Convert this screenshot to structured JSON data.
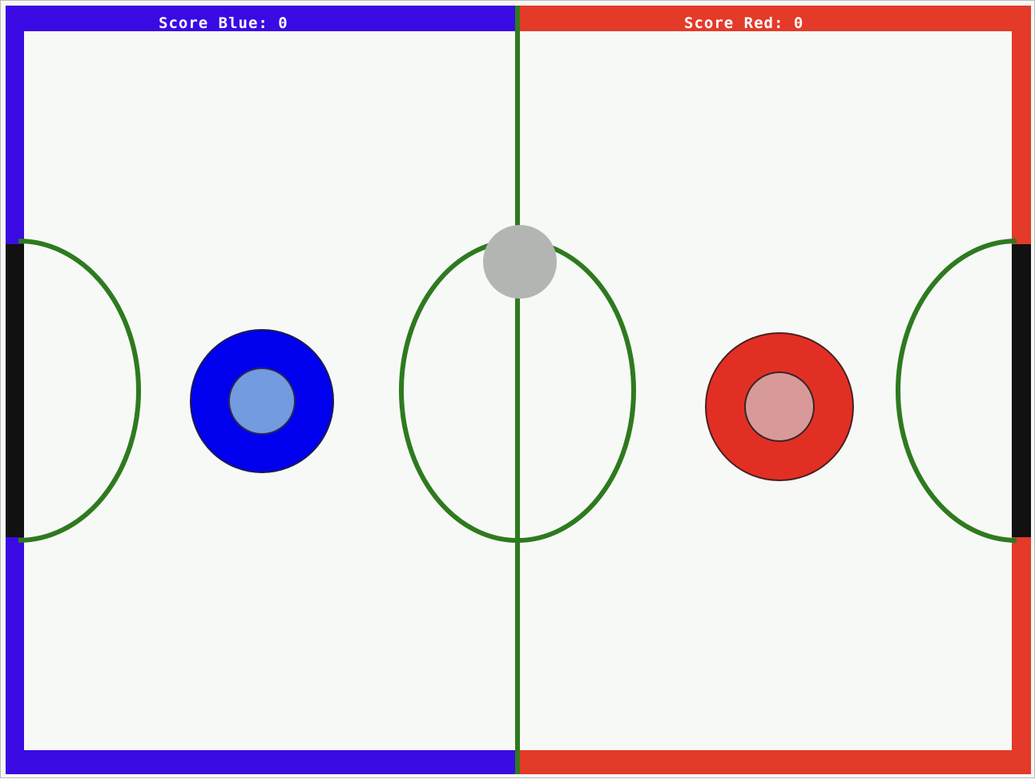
{
  "scoreboard": {
    "blue_label": "Score Blue: 0",
    "red_label": "Score Red: 0",
    "blue_score": 0,
    "red_score": 0
  },
  "colors": {
    "blue_team": "#3a0ae4",
    "red_team": "#e33a2a",
    "rink_surface": "#f7f9f6",
    "line_green": "#2e7a1f",
    "goal_black": "#111111",
    "blue_mallet_outer": "#0000ee",
    "blue_mallet_inner": "#739be0",
    "red_mallet_outer": "#e22f24",
    "red_mallet_inner": "#d79a99",
    "puck": "#b3b5b2"
  }
}
